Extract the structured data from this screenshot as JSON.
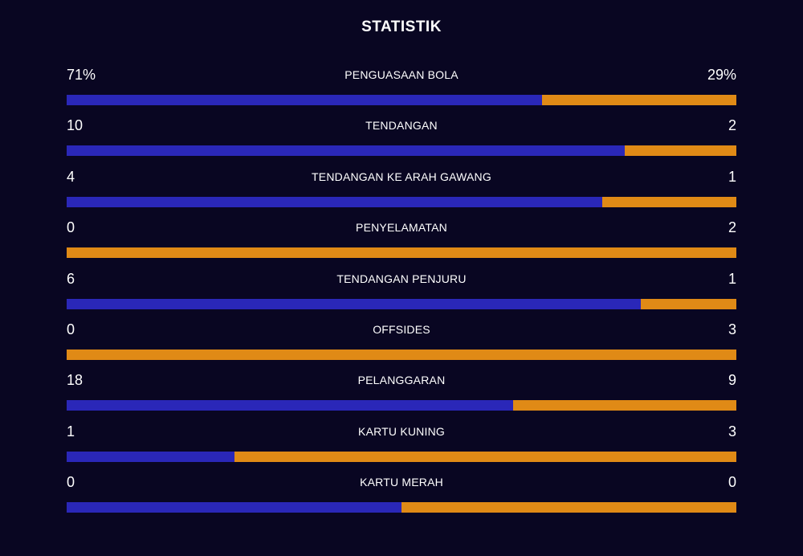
{
  "title": "STATISTIK",
  "colors": {
    "background": "#090622",
    "home": "#2a27b8",
    "away": "#e08a16"
  },
  "stats": [
    {
      "label": "PENGUASAAN BOLA",
      "home": "71%",
      "away": "29%",
      "home_share": 0.71
    },
    {
      "label": "TENDANGAN",
      "home": "10",
      "away": "2",
      "home_share": 0.8333
    },
    {
      "label": "TENDANGAN KE ARAH GAWANG",
      "home": "4",
      "away": "1",
      "home_share": 0.8
    },
    {
      "label": "PENYELAMATAN",
      "home": "0",
      "away": "2",
      "home_share": 0
    },
    {
      "label": "TENDANGAN PENJURU",
      "home": "6",
      "away": "1",
      "home_share": 0.8571
    },
    {
      "label": "OFFSIDES",
      "home": "0",
      "away": "3",
      "home_share": 0
    },
    {
      "label": "PELANGGARAN",
      "home": "18",
      "away": "9",
      "home_share": 0.6667
    },
    {
      "label": "KARTU KUNING",
      "home": "1",
      "away": "3",
      "home_share": 0.25
    },
    {
      "label": "KARTU MERAH",
      "home": "0",
      "away": "0",
      "home_share": 0.5
    }
  ]
}
